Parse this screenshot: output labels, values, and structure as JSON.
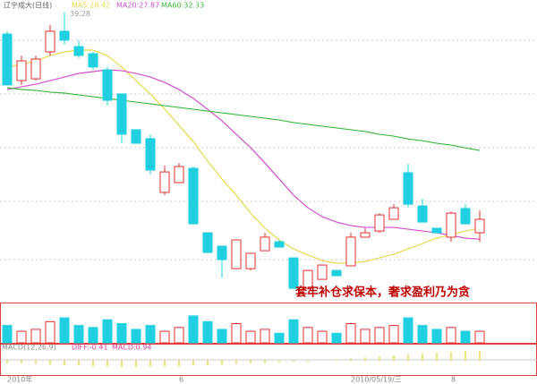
{
  "chart_data": [
    {
      "type": "candlestick",
      "title": "辽宁成大(日线)",
      "ylim": [
        24.73,
        39.53
      ],
      "up_color": "#e03030",
      "down_color": "#20d0e0",
      "annotation": "套牢补仓求保本，奢求盈利乃为贪",
      "high_label": "39.28",
      "high_label_index": 4,
      "candles": [
        {
          "open": 38.18,
          "high": 38.32,
          "low": 35.62,
          "close": 35.62
        },
        {
          "open": 35.84,
          "high": 37.1,
          "low": 35.62,
          "close": 36.83
        },
        {
          "open": 35.93,
          "high": 37.1,
          "low": 35.84,
          "close": 36.92
        },
        {
          "open": 37.28,
          "high": 38.63,
          "low": 37.1,
          "close": 38.32
        },
        {
          "open": 38.32,
          "high": 39.28,
          "low": 37.64,
          "close": 37.87
        },
        {
          "open": 37.55,
          "high": 37.87,
          "low": 36.97,
          "close": 37.1
        },
        {
          "open": 37.19,
          "high": 37.28,
          "low": 36.38,
          "close": 36.52
        },
        {
          "open": 36.38,
          "high": 36.52,
          "low": 34.58,
          "close": 34.85
        },
        {
          "open": 35.17,
          "high": 35.17,
          "low": 32.69,
          "close": 33.14
        },
        {
          "open": 33.37,
          "high": 33.37,
          "low": 32.69,
          "close": 32.69
        },
        {
          "open": 32.92,
          "high": 33.14,
          "low": 31.12,
          "close": 31.34
        },
        {
          "open": 30.22,
          "high": 31.57,
          "low": 30.08,
          "close": 31.25
        },
        {
          "open": 30.71,
          "high": 31.7,
          "low": 30.71,
          "close": 31.52
        },
        {
          "open": 31.43,
          "high": 31.52,
          "low": 28.64,
          "close": 28.64
        },
        {
          "open": 28.19,
          "high": 28.19,
          "low": 27.2,
          "close": 27.2
        },
        {
          "open": 27.52,
          "high": 27.52,
          "low": 25.94,
          "close": 26.84
        },
        {
          "open": 26.39,
          "high": 27.83,
          "low": 26.39,
          "close": 27.83
        },
        {
          "open": 26.39,
          "high": 27.16,
          "low": 26.3,
          "close": 27.16
        },
        {
          "open": 27.29,
          "high": 28.19,
          "low": 27.29,
          "close": 27.97
        },
        {
          "open": 27.74,
          "high": 27.83,
          "low": 27.47,
          "close": 27.47
        },
        {
          "open": 26.93,
          "high": 26.93,
          "low": 25.4,
          "close": 25.4
        },
        {
          "open": 25.4,
          "high": 26.3,
          "low": 25.4,
          "close": 26.3
        },
        {
          "open": 25.85,
          "high": 26.57,
          "low": 25.85,
          "close": 26.57
        },
        {
          "open": 26.3,
          "high": 26.3,
          "low": 26.03,
          "close": 26.03
        },
        {
          "open": 26.53,
          "high": 28.19,
          "low": 26.53,
          "close": 27.97
        },
        {
          "open": 27.97,
          "high": 28.42,
          "low": 27.97,
          "close": 28.19
        },
        {
          "open": 28.28,
          "high": 29.18,
          "low": 28.19,
          "close": 29.09
        },
        {
          "open": 28.87,
          "high": 29.63,
          "low": 28.87,
          "close": 29.45
        },
        {
          "open": 31.21,
          "high": 31.66,
          "low": 29.45,
          "close": 29.63
        },
        {
          "open": 29.54,
          "high": 29.9,
          "low": 28.73,
          "close": 28.73
        },
        {
          "open": 28.42,
          "high": 28.42,
          "low": 28.19,
          "close": 28.19
        },
        {
          "open": 27.97,
          "high": 29.27,
          "low": 27.74,
          "close": 29.18
        },
        {
          "open": 29.41,
          "high": 29.63,
          "low": 28.64,
          "close": 28.64
        },
        {
          "open": 28.19,
          "high": 29.32,
          "low": 27.74,
          "close": 28.87
        }
      ],
      "series": [
        {
          "name": "MA5:28.42",
          "color": "#e8d850",
          "values": [
            36.52,
            36.65,
            36.83,
            37.1,
            37.28,
            37.37,
            37.37,
            37.1,
            36.52,
            35.84,
            35.17,
            34.4,
            33.59,
            32.78,
            31.79,
            30.89,
            30.08,
            29.18,
            28.42,
            27.83,
            27.38,
            27.07,
            26.8,
            26.66,
            26.66,
            26.75,
            26.93,
            27.11,
            27.38,
            27.65,
            27.92,
            28.1,
            28.28,
            28.42
          ]
        },
        {
          "name": "MA20:27.87",
          "color": "#d050d0",
          "values": [
            35.39,
            35.53,
            35.66,
            35.84,
            36.02,
            36.2,
            36.29,
            36.38,
            36.34,
            36.2,
            36.02,
            35.75,
            35.39,
            34.94,
            34.4,
            33.82,
            33.14,
            32.47,
            31.7,
            30.89,
            30.08,
            29.45,
            29.0,
            28.73,
            28.55,
            28.46,
            28.46,
            28.46,
            28.37,
            28.28,
            28.19,
            28.06,
            27.92,
            27.87
          ]
        },
        {
          "name": "MA60:32.33",
          "color": "#40b840",
          "values": [
            35.48,
            35.39,
            35.35,
            35.26,
            35.21,
            35.12,
            35.03,
            34.94,
            34.85,
            34.76,
            34.67,
            34.58,
            34.49,
            34.4,
            34.31,
            34.22,
            34.13,
            34.04,
            33.95,
            33.86,
            33.73,
            33.64,
            33.55,
            33.46,
            33.37,
            33.28,
            33.14,
            33.05,
            32.91,
            32.82,
            32.69,
            32.6,
            32.46,
            32.33
          ]
        }
      ]
    },
    {
      "type": "bar",
      "ylim": [
        0,
        40
      ],
      "values": [
        18,
        12,
        14,
        22,
        26,
        18,
        16,
        24,
        20,
        14,
        18,
        12,
        16,
        28,
        22,
        14,
        20,
        12,
        14,
        10,
        24,
        16,
        12,
        10,
        20,
        14,
        16,
        18,
        26,
        18,
        14,
        16,
        12,
        12
      ]
    },
    {
      "type": "bar",
      "ylim": [
        -1.5,
        1.5
      ],
      "color": "#e8d850",
      "labels": [
        "MACD(12,26,9)",
        "DIFF:-0.41",
        "MACD:0.94"
      ],
      "values": [
        -0.3,
        -0.35,
        -0.4,
        -0.45,
        -0.5,
        -0.55,
        -0.6,
        -0.6,
        -0.7,
        -0.7,
        -0.65,
        -0.6,
        -0.6,
        -0.55,
        -0.5,
        -0.45,
        -0.4,
        -0.35,
        -0.3,
        -0.2,
        -0.15,
        -0.1,
        0.05,
        0.1,
        0.2,
        0.3,
        0.4,
        0.5,
        0.6,
        0.7,
        0.75,
        0.8,
        0.9,
        0.94
      ],
      "categories": [
        "2010年",
        null,
        null,
        null,
        null,
        null,
        null,
        null,
        null,
        null,
        null,
        null,
        "6",
        null,
        null,
        null,
        null,
        null,
        null,
        null,
        null,
        null,
        null,
        null,
        "2010/05/19/三",
        null,
        null,
        null,
        null,
        null,
        null,
        "8",
        null,
        null
      ]
    }
  ]
}
